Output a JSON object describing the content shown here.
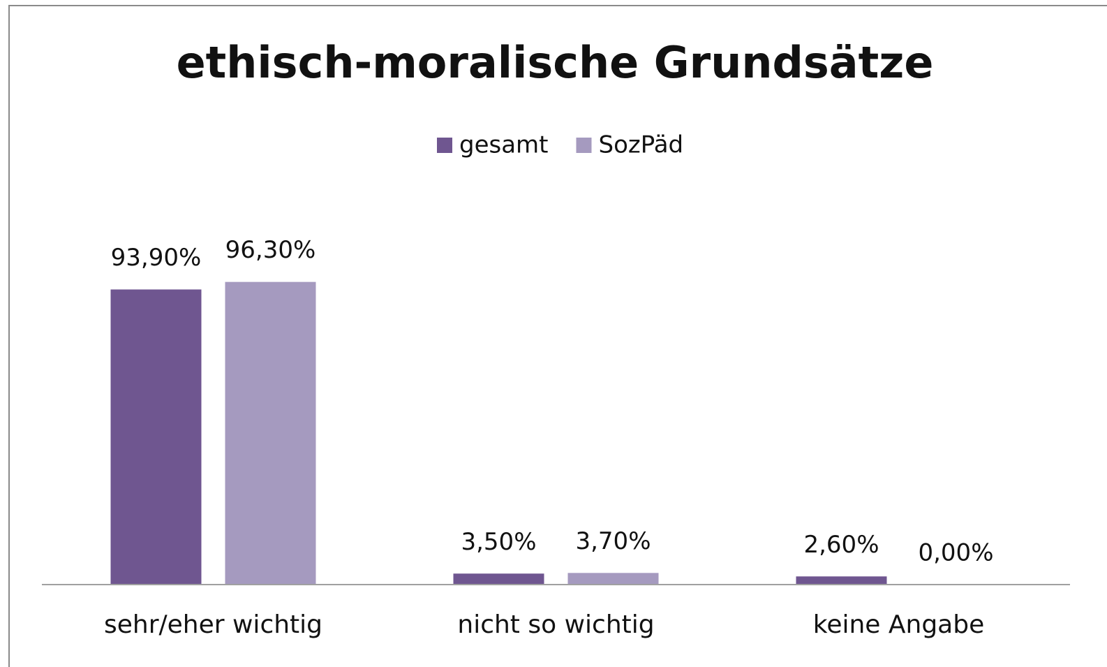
{
  "chart_data": {
    "type": "bar",
    "title": "ethisch-moralische Grundsätze",
    "categories": [
      "sehr/eher wichtig",
      "nicht so wichtig",
      "keine Angabe"
    ],
    "series": [
      {
        "name": "gesamt",
        "color": "#6f5690",
        "values": [
          93.9,
          3.5,
          2.6
        ],
        "value_labels": [
          "93,90%",
          "3,50%",
          "2,60%"
        ]
      },
      {
        "name": "SozPäd",
        "color": "#a59abf",
        "values": [
          96.3,
          3.7,
          0
        ],
        "value_labels": [
          "96,30%",
          "3,70%",
          "0,00%"
        ]
      }
    ],
    "ylim": [
      0,
      100
    ],
    "legend": "top"
  }
}
